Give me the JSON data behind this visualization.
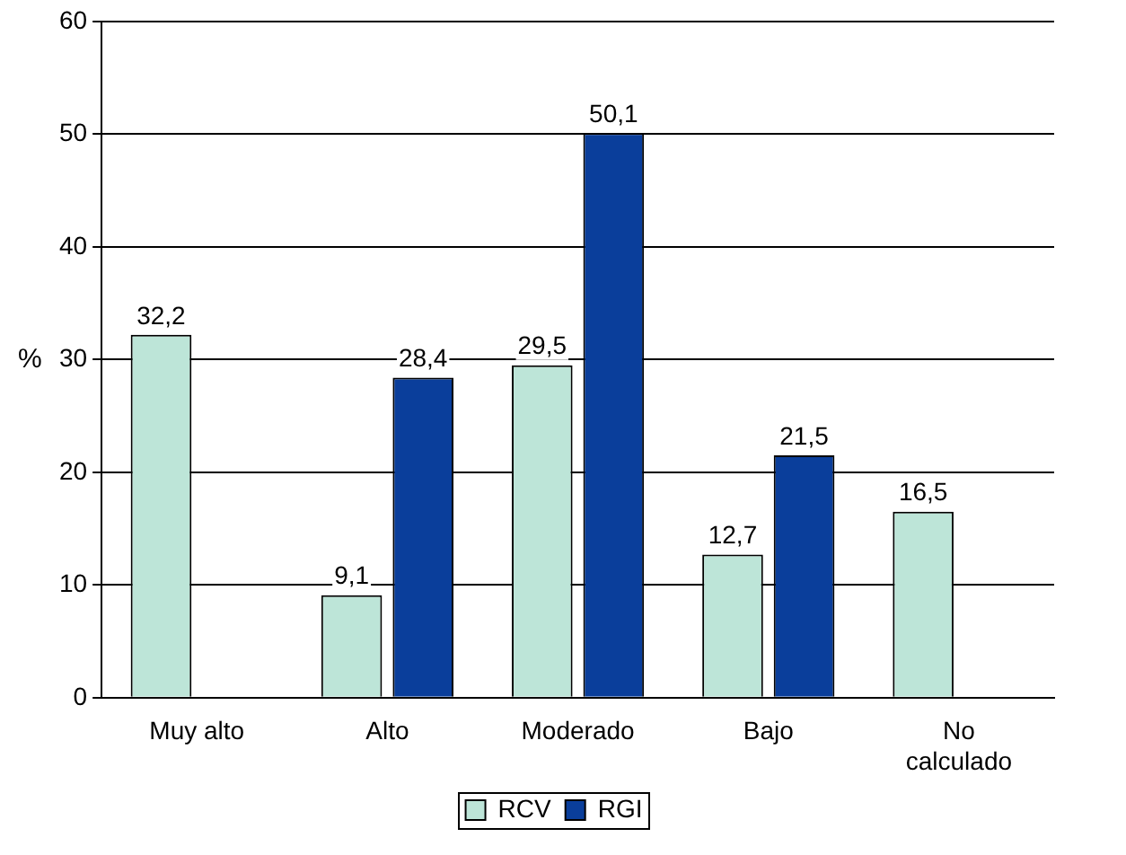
{
  "chart_data": {
    "type": "bar",
    "ylabel": "%",
    "categories": [
      "Muy alto",
      "Alto",
      "Moderado",
      "Bajo",
      "No calculado"
    ],
    "series": [
      {
        "name": "RCV",
        "color": "#bde5d8",
        "values": [
          32.2,
          9.1,
          29.5,
          12.7,
          16.5
        ],
        "value_labels": [
          "32,2",
          "9,1",
          "29,5",
          "12,7",
          "16,5"
        ]
      },
      {
        "name": "RGI",
        "color": "#0a3e9b",
        "values": [
          null,
          28.4,
          50.1,
          21.5,
          null
        ],
        "value_labels": [
          null,
          "28,4",
          "50,1",
          "21,5",
          null
        ]
      }
    ],
    "ylim": [
      0,
      60
    ],
    "yticks": [
      0,
      10,
      20,
      30,
      40,
      50,
      60
    ],
    "grid": "y",
    "legend": "bottom"
  }
}
